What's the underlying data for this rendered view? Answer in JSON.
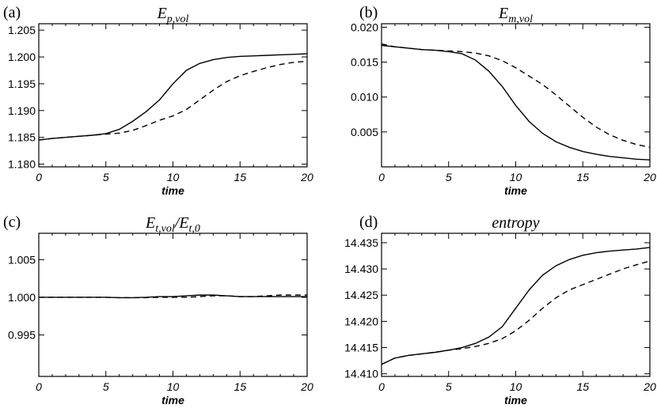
{
  "chart_data": [
    {
      "panel": "(a)",
      "type": "line",
      "title": "E",
      "title_sub": "p,vol",
      "xlabel": "time",
      "xlim": [
        0,
        20
      ],
      "ylim": [
        1.1795,
        1.2062
      ],
      "xticks": [
        0,
        5,
        10,
        15,
        20
      ],
      "yticks": [
        1.18,
        1.185,
        1.19,
        1.195,
        1.2,
        1.205
      ],
      "ytick_labels": [
        "1.180",
        "1.185",
        "1.190",
        "1.195",
        "1.200",
        "1.205"
      ],
      "series": [
        {
          "name": "solid",
          "style": "solid",
          "x": [
            0,
            1,
            2,
            3,
            4,
            5,
            6,
            7,
            8,
            9,
            10,
            11,
            12,
            13,
            14,
            15,
            16,
            17,
            18,
            19,
            20
          ],
          "y": [
            1.1845,
            1.1848,
            1.185,
            1.1852,
            1.1854,
            1.1857,
            1.1865,
            1.188,
            1.1898,
            1.192,
            1.195,
            1.1975,
            1.1988,
            1.1995,
            1.1999,
            1.2001,
            1.2002,
            1.2003,
            1.2004,
            1.2005,
            1.2006
          ]
        },
        {
          "name": "dashed",
          "style": "dashed",
          "x": [
            0,
            1,
            2,
            3,
            4,
            5,
            6,
            7,
            8,
            9,
            10,
            11,
            12,
            13,
            14,
            15,
            16,
            17,
            18,
            19,
            20
          ],
          "y": [
            1.1845,
            1.1848,
            1.185,
            1.1852,
            1.1854,
            1.1856,
            1.1858,
            1.1863,
            1.1872,
            1.1882,
            1.189,
            1.1902,
            1.192,
            1.1938,
            1.1954,
            1.1965,
            1.1973,
            1.198,
            1.1986,
            1.199,
            1.1992
          ]
        }
      ]
    },
    {
      "panel": "(b)",
      "type": "line",
      "title": "E",
      "title_sub": "m,vol",
      "xlabel": "time",
      "xlim": [
        0,
        20
      ],
      "ylim": [
        0.0,
        0.0205
      ],
      "xticks": [
        0,
        5,
        10,
        15,
        20
      ],
      "yticks": [
        0.005,
        0.01,
        0.015,
        0.02
      ],
      "ytick_labels": [
        "0.005",
        "0.010",
        "0.015",
        "0.020"
      ],
      "series": [
        {
          "name": "solid",
          "style": "solid",
          "x": [
            0,
            1,
            2,
            3,
            4,
            5,
            6,
            7,
            8,
            9,
            10,
            11,
            12,
            13,
            14,
            15,
            16,
            17,
            18,
            19,
            20
          ],
          "y": [
            0.0174,
            0.0172,
            0.017,
            0.0168,
            0.0167,
            0.0165,
            0.0162,
            0.0153,
            0.0137,
            0.0115,
            0.0088,
            0.0065,
            0.0048,
            0.0036,
            0.0028,
            0.0022,
            0.0018,
            0.0015,
            0.0013,
            0.0011,
            0.001
          ]
        },
        {
          "name": "dashed",
          "style": "dashed",
          "x": [
            0,
            1,
            2,
            3,
            4,
            5,
            6,
            7,
            8,
            9,
            10,
            11,
            12,
            13,
            14,
            15,
            16,
            17,
            18,
            19,
            20
          ],
          "y": [
            0.0176,
            0.0172,
            0.017,
            0.0168,
            0.0167,
            0.0166,
            0.0165,
            0.0163,
            0.0159,
            0.0152,
            0.0142,
            0.013,
            0.0118,
            0.0103,
            0.0087,
            0.0071,
            0.0057,
            0.0046,
            0.0038,
            0.0032,
            0.0028
          ]
        }
      ]
    },
    {
      "panel": "(c)",
      "type": "line",
      "title": "E",
      "title_sub": "t,vol",
      "title_mid": "/E",
      "title_sub2": "t,0",
      "xlabel": "time",
      "xlim": [
        0,
        20
      ],
      "ylim": [
        0.9895,
        1.0085
      ],
      "xticks": [
        0,
        5,
        10,
        15,
        20
      ],
      "yticks": [
        0.995,
        1.0,
        1.005
      ],
      "ytick_labels": [
        "0.995",
        "1.000",
        "1.005"
      ],
      "series": [
        {
          "name": "solid",
          "style": "solid",
          "x": [
            0,
            1,
            2,
            3,
            4,
            5,
            6,
            7,
            8,
            9,
            10,
            11,
            12,
            13,
            14,
            15,
            16,
            17,
            18,
            19,
            20
          ],
          "y": [
            1.0,
            1.0,
            1.0,
            1.0,
            1.0,
            1.0,
            0.99995,
            0.99995,
            1.0,
            1.0001,
            1.0001,
            1.0002,
            1.0003,
            1.0003,
            1.0002,
            1.0001,
            1.0001,
            1.0001,
            1.0001,
            1.0001,
            1.0001
          ]
        },
        {
          "name": "dashed",
          "style": "dashed",
          "x": [
            0,
            1,
            2,
            3,
            4,
            5,
            6,
            7,
            8,
            9,
            10,
            11,
            12,
            13,
            14,
            15,
            16,
            17,
            18,
            19,
            20
          ],
          "y": [
            1.0,
            1.0,
            1.0,
            1.0,
            1.0,
            1.0,
            0.99995,
            0.99995,
            0.99995,
            1.0,
            1.0,
            1.0,
            1.0001,
            1.0002,
            1.0002,
            1.0001,
            1.0001,
            1.0002,
            1.0003,
            1.0003,
            1.0003
          ]
        }
      ]
    },
    {
      "panel": "(d)",
      "type": "line",
      "title": "entropy",
      "xlabel": "time",
      "xlim": [
        0,
        20
      ],
      "ylim": [
        14.4095,
        14.4368
      ],
      "xticks": [
        0,
        5,
        10,
        15,
        20
      ],
      "yticks": [
        14.41,
        14.415,
        14.42,
        14.425,
        14.43,
        14.435
      ],
      "ytick_labels": [
        "14.410",
        "14.415",
        "14.420",
        "14.425",
        "14.430",
        "14.435"
      ],
      "series": [
        {
          "name": "solid",
          "style": "solid",
          "x": [
            0,
            1,
            2,
            3,
            4,
            5,
            6,
            7,
            8,
            9,
            10,
            11,
            12,
            13,
            14,
            15,
            16,
            17,
            18,
            19,
            20
          ],
          "y": [
            14.4118,
            14.413,
            14.4135,
            14.4138,
            14.4141,
            14.4145,
            14.415,
            14.4158,
            14.417,
            14.419,
            14.4225,
            14.426,
            14.4288,
            14.4306,
            14.4318,
            14.4326,
            14.4331,
            14.4334,
            14.4336,
            14.4338,
            14.4341
          ]
        },
        {
          "name": "dashed",
          "style": "dashed",
          "x": [
            0,
            1,
            2,
            3,
            4,
            5,
            6,
            7,
            8,
            9,
            10,
            11,
            12,
            13,
            14,
            15,
            16,
            17,
            18,
            19,
            20
          ],
          "y": [
            14.4118,
            14.413,
            14.4135,
            14.4138,
            14.4141,
            14.4145,
            14.4148,
            14.4152,
            14.4158,
            14.4167,
            14.4182,
            14.4202,
            14.4225,
            14.4245,
            14.426,
            14.427,
            14.428,
            14.429,
            14.43,
            14.4308,
            14.4315
          ]
        }
      ]
    }
  ]
}
